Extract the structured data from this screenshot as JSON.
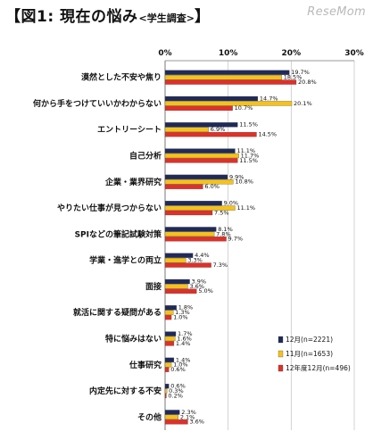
{
  "header": {
    "title": "【図1: 現在の悩み",
    "subtitle": "<学生調査>",
    "title_close": "】",
    "watermark": "ReseMom"
  },
  "chart_data": {
    "type": "bar",
    "orientation": "horizontal",
    "title": "【図1: 現在の悩み<学生調査>】",
    "xlim": [
      0,
      30
    ],
    "x_ticks": [
      "0%",
      "10%",
      "20%",
      "30%"
    ],
    "x_tick_values": [
      0,
      10,
      20,
      30
    ],
    "tick_axis_position": "top",
    "grid": true,
    "legend_position": "bottom-right",
    "categories": [
      "漠然とした不安や焦り",
      "何から手をつけていいかわからない",
      "エントリーシート",
      "自己分析",
      "企業・業界研究",
      "やりたい仕事が見つからない",
      "SPIなどの筆記試験対策",
      "学業・進学との両立",
      "面接",
      "就活に関する疑問がある",
      "特に悩みはない",
      "仕事研究",
      "内定先に対する不安",
      "その他"
    ],
    "series": [
      {
        "name": "12月(n=2221)",
        "color": "#1f2a5a",
        "values": [
          19.7,
          14.7,
          11.5,
          11.1,
          9.9,
          9.0,
          8.1,
          4.4,
          3.9,
          1.8,
          1.7,
          1.4,
          0.6,
          2.3
        ]
      },
      {
        "name": "11月(n=1653)",
        "color": "#f5c21b",
        "values": [
          18.5,
          20.1,
          6.9,
          11.7,
          10.8,
          11.1,
          7.8,
          3.3,
          3.6,
          1.3,
          1.6,
          1.0,
          0.3,
          2.1
        ]
      },
      {
        "name": "12年度12月(n=496)",
        "color": "#e03028",
        "values": [
          20.8,
          10.7,
          14.5,
          11.5,
          6.0,
          7.5,
          9.7,
          7.3,
          5.0,
          1.0,
          1.4,
          0.6,
          0.2,
          3.6
        ]
      }
    ],
    "data_labels": [
      [
        "19.7%",
        "14.7%",
        "11.5%",
        "11.1%",
        "9.9%",
        "9.0%",
        "8.1%",
        "4.4%",
        "3.9%",
        "1.8%",
        "1.7%",
        "1.4%",
        "0.6%",
        "2.3%"
      ],
      [
        "18.5%",
        "20.1%",
        "6.9%",
        "11.7%",
        "10.8%",
        "11.1%",
        "7.8%",
        "3.3%",
        "3.6%",
        "1.3%",
        "1.6%",
        "1.0%",
        "0.3%",
        "2.1%"
      ],
      [
        "20.8%",
        "10.7%",
        "14.5%",
        "11.5%",
        "6.0%",
        "7.5%",
        "9.7%",
        "7.3%",
        "5.0%",
        "1.0%",
        "1.4%",
        "0.6%",
        "0.2%",
        "3.6%"
      ]
    ]
  }
}
